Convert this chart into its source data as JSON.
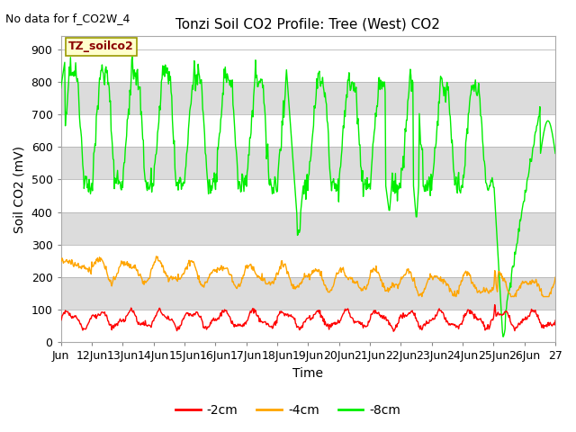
{
  "title": "Tonzi Soil CO2 Profile: Tree (West) CO2",
  "subtitle": "No data for f_CO2W_4",
  "ylabel": "Soil CO2 (mV)",
  "xlabel": "Time",
  "legend_label": "TZ_soilco2",
  "x_tick_labels": [
    "Jun",
    "12Jun",
    "13Jun",
    "14Jun",
    "15Jun",
    "16Jun",
    "17Jun",
    "18Jun",
    "19Jun",
    "20Jun",
    "21Jun",
    "22Jun",
    "23Jun",
    "24Jun",
    "25Jun",
    "26Jun",
    "27"
  ],
  "ylim": [
    0,
    940
  ],
  "yticks": [
    0,
    100,
    200,
    300,
    400,
    500,
    600,
    700,
    800,
    900
  ],
  "color_2cm": "#FF0000",
  "color_4cm": "#FFA500",
  "color_8cm": "#00EE00",
  "bg_color": "#FFFFFF",
  "gray_band_color": "#DCDCDC",
  "legend_box_color": "#FFFFCC",
  "legend_box_edge": "#999900",
  "title_fontsize": 11,
  "subtitle_fontsize": 9,
  "axis_fontsize": 9,
  "ylabel_fontsize": 10,
  "legend_fontsize": 10
}
